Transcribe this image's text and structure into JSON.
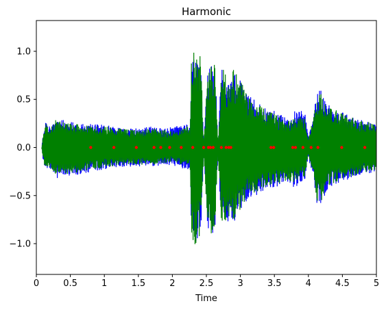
{
  "chart_data": {
    "type": "line",
    "title": "Harmonic",
    "xlabel": "Time",
    "ylabel": "",
    "xlim": [
      0,
      5
    ],
    "ylim": [
      -1.32,
      1.32
    ],
    "grid": false,
    "x_ticks": [
      "0",
      "0.5",
      "1",
      "1.5",
      "2",
      "2.5",
      "3",
      "3.5",
      "4",
      "4.5",
      "5"
    ],
    "y_ticks": [
      "−1.0",
      "−0.5",
      "0.0",
      "0.5",
      "1.0"
    ],
    "series": [
      {
        "color": "#0000ff",
        "envelope_t": [
          0.08,
          0.1,
          0.14,
          0.18,
          0.3,
          0.5,
          0.7,
          0.9,
          1.1,
          1.3,
          1.5,
          1.7,
          1.9,
          2.05,
          2.15,
          2.22,
          2.26,
          2.28,
          2.33,
          2.42,
          2.46,
          2.52,
          2.56,
          2.63,
          2.67,
          2.72,
          2.76,
          2.8,
          2.85,
          2.9,
          3.0,
          3.1,
          3.2,
          3.35,
          3.5,
          3.65,
          3.8,
          3.95,
          4.0,
          4.03,
          4.08,
          4.12,
          4.17,
          4.22,
          4.3,
          4.4,
          4.55,
          4.7,
          4.85,
          5.0
        ],
        "envelope_max": [
          0.0,
          0.15,
          0.28,
          0.22,
          0.3,
          0.27,
          0.25,
          0.24,
          0.23,
          0.2,
          0.2,
          0.22,
          0.2,
          0.23,
          0.22,
          0.25,
          0.2,
          0.95,
          1.0,
          0.9,
          0.05,
          0.82,
          0.85,
          0.86,
          0.05,
          0.82,
          0.78,
          0.72,
          0.65,
          0.82,
          0.7,
          0.55,
          0.5,
          0.42,
          0.38,
          0.32,
          0.4,
          0.38,
          0.1,
          0.22,
          0.35,
          0.58,
          0.62,
          0.52,
          0.45,
          0.42,
          0.35,
          0.3,
          0.28,
          0.25
        ],
        "envelope_min": [
          0.0,
          -0.15,
          -0.25,
          -0.2,
          -0.32,
          -0.3,
          -0.27,
          -0.24,
          -0.22,
          -0.2,
          -0.2,
          -0.2,
          -0.18,
          -0.2,
          -0.22,
          -0.25,
          -0.2,
          -0.95,
          -1.0,
          -0.92,
          -0.05,
          -0.85,
          -0.92,
          -0.9,
          -0.05,
          -0.82,
          -0.78,
          -0.8,
          -0.72,
          -0.8,
          -0.65,
          -0.55,
          -0.52,
          -0.45,
          -0.42,
          -0.38,
          -0.42,
          -0.35,
          -0.1,
          -0.2,
          -0.3,
          -0.6,
          -0.62,
          -0.55,
          -0.45,
          -0.38,
          -0.35,
          -0.3,
          -0.28,
          -0.25
        ]
      },
      {
        "color": "#008000",
        "envelope_t": [
          0.08,
          0.1,
          0.14,
          0.18,
          0.3,
          0.5,
          0.7,
          0.9,
          1.1,
          1.3,
          1.5,
          1.7,
          1.9,
          2.05,
          2.15,
          2.22,
          2.26,
          2.28,
          2.33,
          2.42,
          2.46,
          2.52,
          2.56,
          2.63,
          2.67,
          2.72,
          2.76,
          2.8,
          2.85,
          2.9,
          3.0,
          3.1,
          3.2,
          3.35,
          3.5,
          3.65,
          3.8,
          3.95,
          4.0,
          4.03,
          4.08,
          4.12,
          4.17,
          4.22,
          4.3,
          4.4,
          4.55,
          4.7,
          4.85,
          5.0
        ],
        "envelope_max": [
          0.0,
          0.12,
          0.26,
          0.2,
          0.3,
          0.25,
          0.24,
          0.22,
          0.22,
          0.19,
          0.18,
          0.2,
          0.18,
          0.18,
          0.2,
          0.22,
          0.18,
          0.98,
          1.02,
          0.95,
          0.04,
          0.8,
          0.88,
          0.86,
          0.04,
          0.85,
          0.8,
          0.72,
          0.66,
          0.85,
          0.7,
          0.55,
          0.48,
          0.4,
          0.35,
          0.3,
          0.32,
          0.34,
          0.08,
          0.2,
          0.35,
          0.55,
          0.6,
          0.5,
          0.42,
          0.4,
          0.34,
          0.3,
          0.28,
          0.24
        ],
        "envelope_min": [
          0.0,
          -0.12,
          -0.26,
          -0.2,
          -0.3,
          -0.28,
          -0.25,
          -0.22,
          -0.2,
          -0.18,
          -0.18,
          -0.18,
          -0.16,
          -0.16,
          -0.18,
          -0.22,
          -0.18,
          -1.0,
          -1.02,
          -0.9,
          -0.04,
          -0.82,
          -0.9,
          -0.88,
          -0.04,
          -0.82,
          -0.78,
          -0.78,
          -0.7,
          -0.78,
          -0.65,
          -0.52,
          -0.48,
          -0.42,
          -0.4,
          -0.35,
          -0.36,
          -0.3,
          -0.08,
          -0.18,
          -0.3,
          -0.58,
          -0.6,
          -0.52,
          -0.42,
          -0.36,
          -0.33,
          -0.28,
          -0.26,
          -0.24
        ]
      }
    ],
    "markers": {
      "color": "#ff0000",
      "y": 0,
      "x": [
        0.8,
        1.14,
        1.47,
        1.73,
        1.83,
        1.96,
        2.13,
        2.3,
        2.46,
        2.53,
        2.56,
        2.6,
        2.72,
        2.79,
        2.83,
        2.86,
        3.45,
        3.49,
        3.77,
        3.81,
        3.92,
        4.04,
        4.14,
        4.49,
        4.83
      ]
    }
  }
}
